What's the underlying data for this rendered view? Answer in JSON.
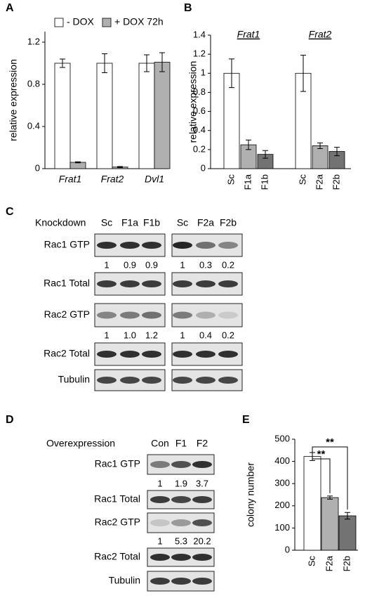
{
  "chart_data": [
    {
      "type": "bar",
      "panel": "A",
      "ylabel": "relative expression",
      "categories": [
        "Frat1",
        "Frat2",
        "Dvl1"
      ],
      "series": [
        {
          "name": "- DOX",
          "color": "#ffffff",
          "values": [
            1,
            1,
            1
          ],
          "errors": [
            0.04,
            0.09,
            0.08
          ]
        },
        {
          "name": "+ DOX 72h",
          "color": "#b0b0b0",
          "values": [
            0.06,
            0.015,
            1.01
          ],
          "errors": [
            0.005,
            0.005,
            0.09
          ]
        }
      ],
      "ylim": [
        0,
        1.3
      ],
      "yticks": [
        0,
        0.4,
        0.8,
        1.2
      ]
    },
    {
      "type": "bar",
      "panel": "B",
      "ylabel": "relative expression",
      "groups": [
        "Frat1",
        "Frat2"
      ],
      "categories": [
        "Sc",
        "F1a",
        "F1b",
        "Sc",
        "F2a",
        "F2b"
      ],
      "values": [
        1,
        0.25,
        0.15,
        1,
        0.24,
        0.18
      ],
      "errors": [
        0.15,
        0.05,
        0.04,
        0.19,
        0.03,
        0.045
      ],
      "colors": [
        "#ffffff",
        "#b0b0b0",
        "#737373",
        "#ffffff",
        "#b0b0b0",
        "#737373"
      ],
      "ylim": [
        0,
        1.4
      ],
      "yticks": [
        0,
        0.2,
        0.4,
        0.6,
        0.8,
        1,
        1.2,
        1.4
      ]
    },
    {
      "type": "bar",
      "panel": "E",
      "ylabel": "colony number",
      "categories": [
        "Sc",
        "F2a",
        "F2b"
      ],
      "values": [
        422,
        237,
        155
      ],
      "errors": [
        18,
        7,
        15
      ],
      "colors": [
        "#ffffff",
        "#b0b0b0",
        "#737373"
      ],
      "annotations": [
        "**",
        "**"
      ],
      "ylim": [
        0,
        500
      ],
      "yticks": [
        0,
        100,
        200,
        300,
        400,
        500
      ]
    }
  ],
  "blots": [
    {
      "panel": "C",
      "header": "Knockdown",
      "lanes": [
        "Sc",
        "F1a",
        "F1b",
        "Sc",
        "F2a",
        "F2b"
      ],
      "rows": [
        {
          "label": "Rac1 GTP",
          "quant": [
            "1",
            "0.9",
            "0.9",
            "1",
            "0.3",
            "0.2"
          ]
        },
        {
          "label": "Rac1 Total"
        },
        {
          "label": "Rac2 GTP",
          "quant": [
            "1",
            "1.0",
            "1.2",
            "1",
            "0.4",
            "0.2"
          ]
        },
        {
          "label": "Rac2 Total"
        },
        {
          "label": "Tubulin"
        }
      ]
    },
    {
      "panel": "D",
      "header": "Overexpression",
      "lanes": [
        "Con",
        "F1",
        "F2"
      ],
      "rows": [
        {
          "label": "Rac1 GTP",
          "quant": [
            "1",
            "1.9",
            "3.7"
          ]
        },
        {
          "label": "Rac1 Total"
        },
        {
          "label": "Rac2 GTP",
          "quant": [
            "1",
            "5.3",
            "20.2"
          ]
        },
        {
          "label": "Rac2 Total"
        },
        {
          "label": "Tubulin"
        }
      ]
    }
  ]
}
